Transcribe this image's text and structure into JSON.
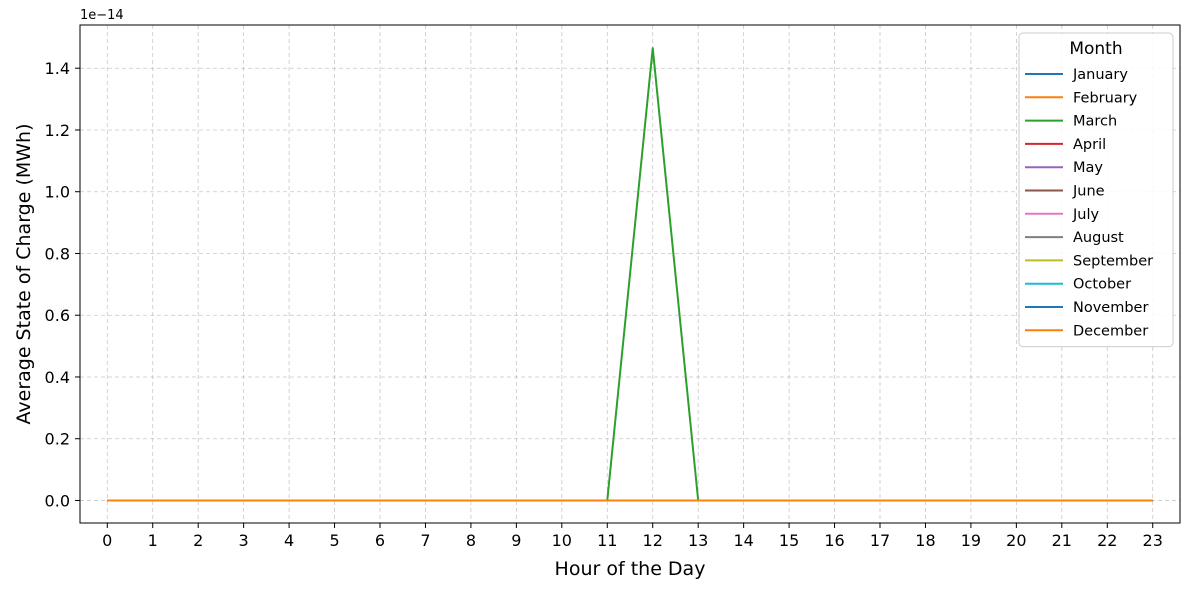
{
  "chart_data": {
    "type": "line",
    "title": "",
    "xlabel": "Hour of the Day",
    "ylabel": "Average State of Charge (MWh)",
    "y_offset_text": "1e−14",
    "x": [
      0,
      1,
      2,
      3,
      4,
      5,
      6,
      7,
      8,
      9,
      10,
      11,
      12,
      13,
      14,
      15,
      16,
      17,
      18,
      19,
      20,
      21,
      22,
      23
    ],
    "x_ticks": [
      "0",
      "1",
      "2",
      "3",
      "4",
      "5",
      "6",
      "7",
      "8",
      "9",
      "10",
      "11",
      "12",
      "13",
      "14",
      "15",
      "16",
      "17",
      "18",
      "19",
      "20",
      "21",
      "22",
      "23"
    ],
    "xlim": [
      -0.6,
      23.6
    ],
    "y_ticks": [
      "0.0",
      "0.2",
      "0.4",
      "0.6",
      "0.8",
      "1.0",
      "1.2",
      "1.4"
    ],
    "ylim": [
      -0.073,
      1.54
    ],
    "y_scale_note": "values in units of 1e-14",
    "grid": true,
    "legend": {
      "title": "Month",
      "position": "top-right"
    },
    "series": [
      {
        "name": "January",
        "color": "#1f77b4",
        "values": [
          0,
          0,
          0,
          0,
          0,
          0,
          0,
          0,
          0,
          0,
          0,
          0,
          0,
          0,
          0,
          0,
          0,
          0,
          0,
          0,
          0,
          0,
          0,
          0
        ]
      },
      {
        "name": "February",
        "color": "#ff7f0e",
        "values": [
          0,
          0,
          0,
          0,
          0,
          0,
          0,
          0,
          0,
          0,
          0,
          0,
          0,
          0,
          0,
          0,
          0,
          0,
          0,
          0,
          0,
          0,
          0,
          0
        ]
      },
      {
        "name": "March",
        "color": "#2ca02c",
        "values": [
          0,
          0,
          0,
          0,
          0,
          0,
          0,
          0,
          0,
          0,
          0,
          0,
          1.465,
          0,
          0,
          0,
          0,
          0,
          0,
          0,
          0,
          0,
          0,
          0
        ]
      },
      {
        "name": "April",
        "color": "#d62728",
        "values": [
          0,
          0,
          0,
          0,
          0,
          0,
          0,
          0,
          0,
          0,
          0,
          0,
          0,
          0,
          0,
          0,
          0,
          0,
          0,
          0,
          0,
          0,
          0,
          0
        ]
      },
      {
        "name": "May",
        "color": "#9467bd",
        "values": [
          0,
          0,
          0,
          0,
          0,
          0,
          0,
          0,
          0,
          0,
          0,
          0,
          0,
          0,
          0,
          0,
          0,
          0,
          0,
          0,
          0,
          0,
          0,
          0
        ]
      },
      {
        "name": "June",
        "color": "#8c564b",
        "values": [
          0,
          0,
          0,
          0,
          0,
          0,
          0,
          0,
          0,
          0,
          0,
          0,
          0,
          0,
          0,
          0,
          0,
          0,
          0,
          0,
          0,
          0,
          0,
          0
        ]
      },
      {
        "name": "July",
        "color": "#e377c2",
        "values": [
          0,
          0,
          0,
          0,
          0,
          0,
          0,
          0,
          0,
          0,
          0,
          0,
          0,
          0,
          0,
          0,
          0,
          0,
          0,
          0,
          0,
          0,
          0,
          0
        ]
      },
      {
        "name": "August",
        "color": "#7f7f7f",
        "values": [
          0,
          0,
          0,
          0,
          0,
          0,
          0,
          0,
          0,
          0,
          0,
          0,
          0,
          0,
          0,
          0,
          0,
          0,
          0,
          0,
          0,
          0,
          0,
          0
        ]
      },
      {
        "name": "September",
        "color": "#bcbd22",
        "values": [
          0,
          0,
          0,
          0,
          0,
          0,
          0,
          0,
          0,
          0,
          0,
          0,
          0,
          0,
          0,
          0,
          0,
          0,
          0,
          0,
          0,
          0,
          0,
          0
        ]
      },
      {
        "name": "October",
        "color": "#17becf",
        "values": [
          0,
          0,
          0,
          0,
          0,
          0,
          0,
          0,
          0,
          0,
          0,
          0,
          0,
          0,
          0,
          0,
          0,
          0,
          0,
          0,
          0,
          0,
          0,
          0
        ]
      },
      {
        "name": "November",
        "color": "#1f77b4",
        "values": [
          0,
          0,
          0,
          0,
          0,
          0,
          0,
          0,
          0,
          0,
          0,
          0,
          0,
          0,
          0,
          0,
          0,
          0,
          0,
          0,
          0,
          0,
          0,
          0
        ]
      },
      {
        "name": "December",
        "color": "#ff7f0e",
        "values": [
          0,
          0,
          0,
          0,
          0,
          0,
          0,
          0,
          0,
          0,
          0,
          0,
          0,
          0,
          0,
          0,
          0,
          0,
          0,
          0,
          0,
          0,
          0,
          0
        ]
      }
    ]
  }
}
